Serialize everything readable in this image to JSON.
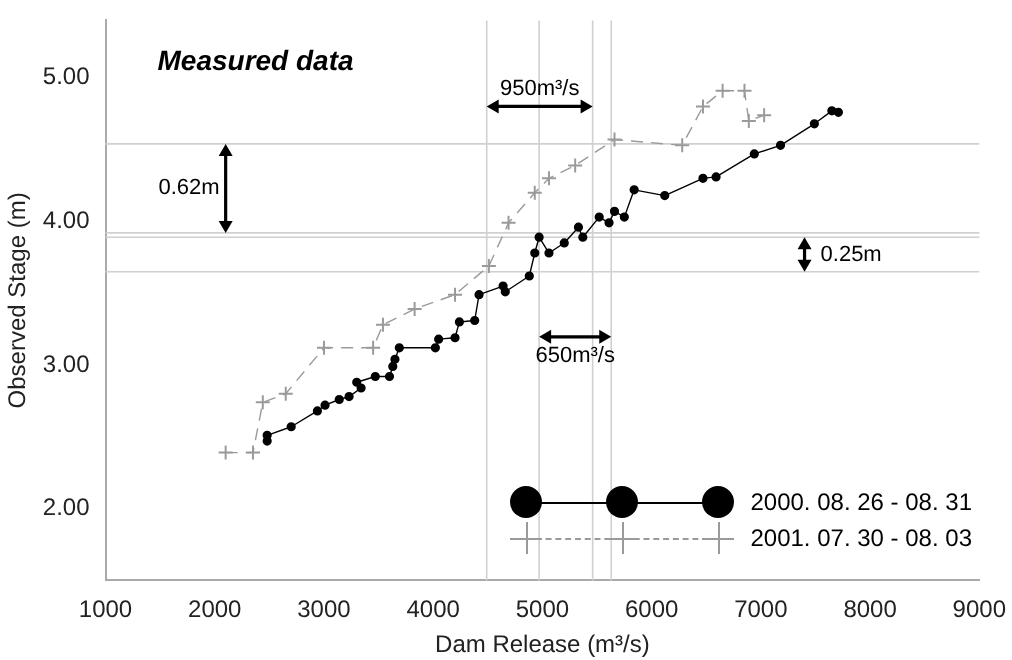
{
  "chart_data": {
    "type": "line",
    "title": "Measured data",
    "xlabel": "Dam Release (m³/s)",
    "ylabel": "Observed Stage (m)",
    "xlim": [
      1000,
      9000
    ],
    "xticks": [
      1000,
      2000,
      3000,
      4000,
      5000,
      6000,
      7000,
      8000,
      9000
    ],
    "ylim": [
      1.5,
      5.4
    ],
    "yticks": [
      {
        "value": 2,
        "label": "2.00"
      },
      {
        "value": 3,
        "label": "3.00"
      },
      {
        "value": 4,
        "label": "4.00"
      },
      {
        "value": 5,
        "label": "5.00"
      }
    ],
    "grid": false,
    "legend": "bottom right",
    "series": [
      {
        "name": "2000. 08. 26 - 08. 31",
        "color": "#000000",
        "marker": "circle",
        "line_style": "solid",
        "x": [
          2480,
          2480,
          2700,
          2940,
          3010,
          3140,
          3230,
          3340,
          3300,
          3470,
          3600,
          3630,
          3650,
          3690,
          4020,
          4050,
          4200,
          4240,
          4380,
          4420,
          4640,
          4660,
          4880,
          4930,
          4970,
          5060,
          5200,
          5330,
          5370,
          5520,
          5610,
          5660,
          5750,
          5840,
          6120,
          6470,
          6590,
          6940,
          7180,
          7490,
          7650,
          7710
        ],
        "values": [
          2.47,
          2.51,
          2.57,
          2.68,
          2.72,
          2.76,
          2.78,
          2.84,
          2.88,
          2.92,
          2.92,
          2.99,
          3.04,
          3.12,
          3.12,
          3.18,
          3.19,
          3.3,
          3.31,
          3.49,
          3.55,
          3.51,
          3.62,
          3.78,
          3.89,
          3.78,
          3.85,
          3.96,
          3.89,
          4.03,
          3.99,
          4.07,
          4.03,
          4.22,
          4.18,
          4.3,
          4.31,
          4.47,
          4.53,
          4.68,
          4.77,
          4.76
        ]
      },
      {
        "name": "2001. 07. 30 - 08. 03",
        "color": "#9a9a9a",
        "marker": "cross",
        "line_style": "dashed",
        "x": [
          2100,
          2350,
          2440,
          2650,
          3000,
          3450,
          3540,
          3830,
          4200,
          4510,
          4690,
          4930,
          5060,
          5300,
          5660,
          6280,
          6470,
          6650,
          6850,
          6890,
          7030
        ],
        "values": [
          2.39,
          2.39,
          2.74,
          2.8,
          3.12,
          3.12,
          3.28,
          3.39,
          3.49,
          3.69,
          3.99,
          4.2,
          4.3,
          4.39,
          4.57,
          4.53,
          4.8,
          4.91,
          4.91,
          4.7,
          4.74
        ]
      }
    ],
    "ref_lines": [
      {
        "axis": "y",
        "value": 4.54,
        "color": "#d0d0d0"
      },
      {
        "axis": "y",
        "value": 3.92,
        "color": "#d0d0d0"
      },
      {
        "axis": "y",
        "value": 3.89,
        "color": "#d0d0d0"
      },
      {
        "axis": "y",
        "value": 3.65,
        "color": "#d0d0d0"
      },
      {
        "axis": "x",
        "value": 4490,
        "color": "#d0d0d0"
      },
      {
        "axis": "x",
        "value": 5460,
        "color": "#d0d0d0"
      },
      {
        "axis": "x",
        "value": 4970,
        "color": "#d0d0d0"
      },
      {
        "axis": "x",
        "value": 5630,
        "color": "#d0d0d0"
      }
    ],
    "annotations": [
      {
        "text": "0.62m",
        "x": 2100,
        "y": 4.54
      },
      "0.25m",
      "950m³/s",
      "650m³/s"
    ]
  }
}
